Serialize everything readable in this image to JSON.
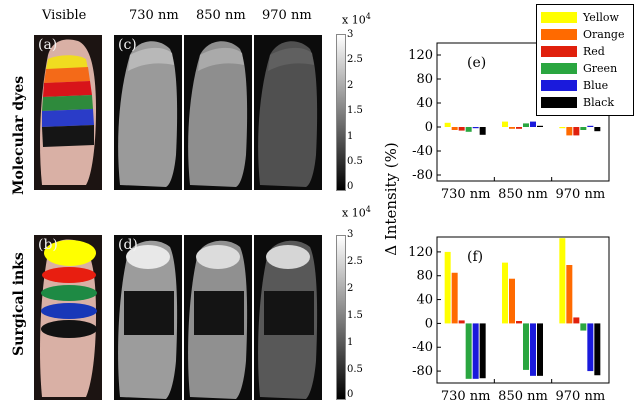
{
  "headers": {
    "visible": "Visible",
    "w730": "730 nm",
    "w850": "850 nm",
    "w970": "970 nm"
  },
  "row_labels": {
    "top": "Molecular dyes",
    "bottom": "Surgical inks"
  },
  "panel_labels": {
    "a": "(a)",
    "b": "(b)",
    "c": "(c)",
    "d": "(d)",
    "e": "(e)",
    "f": "(f)"
  },
  "colorbar": {
    "multiplier_base": "x 10",
    "multiplier_exp": "4",
    "ticks": [
      "3",
      "2.5",
      "2",
      "1.5",
      "1",
      "0.5",
      "0"
    ]
  },
  "ylabel": "Δ Intensity (%)",
  "legend": [
    "Yellow",
    "Orange",
    "Red",
    "Green",
    "Blue",
    "Black"
  ],
  "colors": {
    "Yellow": "#ffff00",
    "Orange": "#ff6a00",
    "Red": "#e0200c",
    "Green": "#2aa640",
    "Blue": "#1a1adc",
    "Black": "#000000"
  },
  "chart_data": [
    {
      "type": "bar",
      "label": "(e)",
      "categories": [
        "730 nm",
        "850 nm",
        "970 nm"
      ],
      "ylim": [
        -90,
        140
      ],
      "yticks": [
        "120",
        "80",
        "40",
        "0",
        "-40",
        "-80"
      ],
      "series": [
        {
          "name": "Yellow",
          "values": [
            7,
            9,
            -2
          ]
        },
        {
          "name": "Orange",
          "values": [
            -5,
            -3,
            -14
          ]
        },
        {
          "name": "Red",
          "values": [
            -6,
            -3,
            -14
          ]
        },
        {
          "name": "Green",
          "values": [
            -8,
            6,
            -5
          ]
        },
        {
          "name": "Blue",
          "values": [
            -2,
            9,
            2
          ]
        },
        {
          "name": "Black",
          "values": [
            -13,
            2,
            -7
          ]
        }
      ]
    },
    {
      "type": "bar",
      "label": "(f)",
      "categories": [
        "730 nm",
        "850 nm",
        "970 nm"
      ],
      "ylim": [
        -100,
        145
      ],
      "yticks": [
        "120",
        "80",
        "40",
        "0",
        "-40",
        "-80"
      ],
      "series": [
        {
          "name": "Yellow",
          "values": [
            120,
            102,
            143
          ]
        },
        {
          "name": "Orange",
          "values": [
            85,
            75,
            98
          ]
        },
        {
          "name": "Red",
          "values": [
            5,
            4,
            10
          ]
        },
        {
          "name": "Green",
          "values": [
            -93,
            -78,
            -12
          ]
        },
        {
          "name": "Blue",
          "values": [
            -93,
            -88,
            -80
          ]
        },
        {
          "name": "Black",
          "values": [
            -92,
            -88,
            -87
          ]
        }
      ]
    }
  ]
}
